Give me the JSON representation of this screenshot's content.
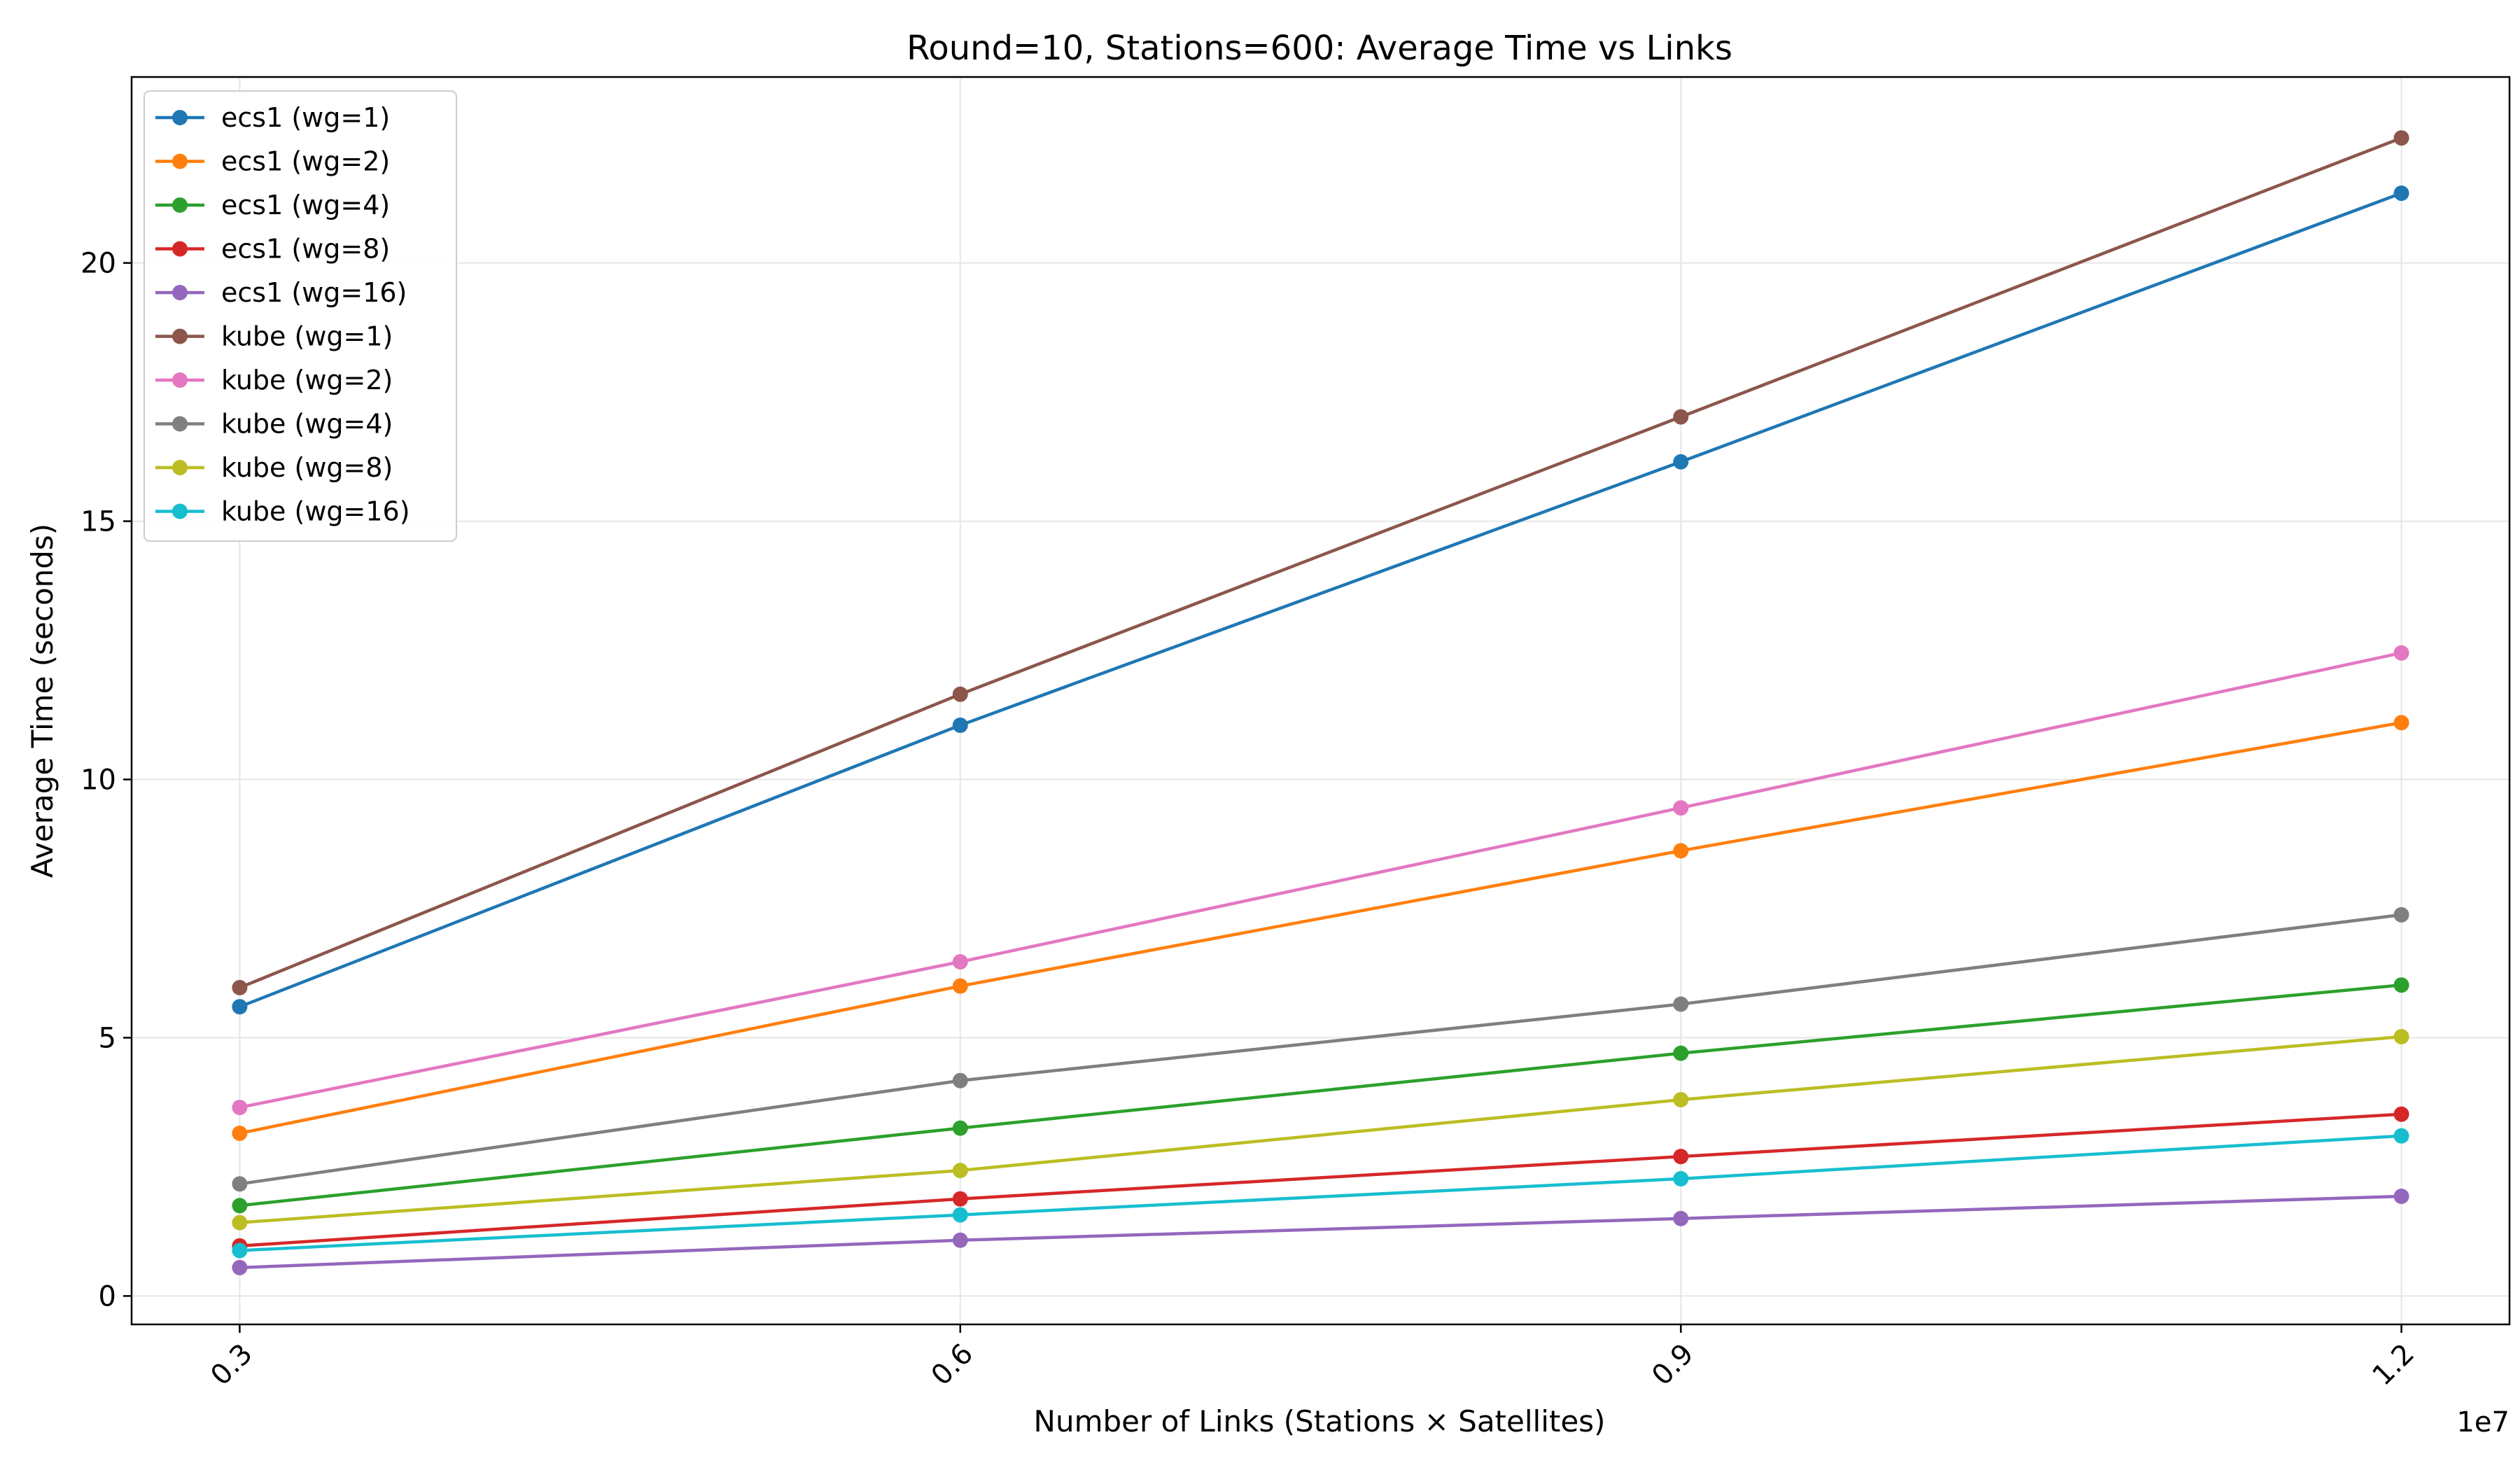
{
  "chart_data": {
    "type": "line",
    "title": "Round=10, Stations=600: Average Time vs Links",
    "xlabel": "Number of Links (Stations × Satellites)",
    "ylabel": "Average Time (seconds)",
    "x": [
      3000000,
      6000000,
      9000000,
      12000000
    ],
    "x_tick_labels": [
      "0.3",
      "0.6",
      "0.9",
      "1.2"
    ],
    "x_offset_label": "1e7",
    "xlim": [
      2550000,
      12450000
    ],
    "y_ticks": [
      0,
      5,
      10,
      15,
      20
    ],
    "ylim": [
      -0.55,
      23.6
    ],
    "grid": true,
    "legend_position": "upper-left",
    "series": [
      {
        "name": "ecs1 (wg=1)",
        "color": "#1f77b4",
        "values": [
          5.6,
          11.05,
          16.15,
          21.35
        ]
      },
      {
        "name": "ecs1 (wg=2)",
        "color": "#ff7f0e",
        "values": [
          3.15,
          6.0,
          8.62,
          11.1
        ]
      },
      {
        "name": "ecs1 (wg=4)",
        "color": "#2ca02c",
        "values": [
          1.75,
          3.25,
          4.7,
          6.02
        ]
      },
      {
        "name": "ecs1 (wg=8)",
        "color": "#d62728",
        "values": [
          0.97,
          1.88,
          2.7,
          3.52
        ]
      },
      {
        "name": "ecs1 (wg=16)",
        "color": "#9467bd",
        "values": [
          0.55,
          1.08,
          1.5,
          1.93
        ]
      },
      {
        "name": "kube (wg=1)",
        "color": "#8c564b",
        "values": [
          5.97,
          11.65,
          17.02,
          22.42
        ]
      },
      {
        "name": "kube (wg=2)",
        "color": "#e377c2",
        "values": [
          3.65,
          6.47,
          9.45,
          12.45
        ]
      },
      {
        "name": "kube (wg=4)",
        "color": "#7f7f7f",
        "values": [
          2.17,
          4.17,
          5.65,
          7.38
        ]
      },
      {
        "name": "kube (wg=8)",
        "color": "#bcbd22",
        "values": [
          1.42,
          2.43,
          3.8,
          5.02
        ]
      },
      {
        "name": "kube (wg=16)",
        "color": "#17becf",
        "values": [
          0.88,
          1.57,
          2.27,
          3.1
        ]
      }
    ]
  }
}
